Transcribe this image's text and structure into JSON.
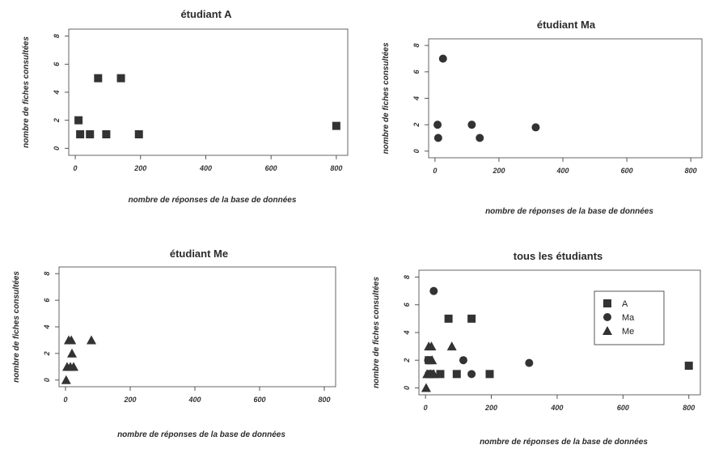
{
  "chart_data": [
    {
      "type": "scatter",
      "title": "étudiant A",
      "xlabel": "nombre de réponses de la base de données",
      "ylabel": "nombre de fiches consultées",
      "xticks": [
        "0",
        "200",
        "400",
        "600",
        "800"
      ],
      "yticks": [
        "0",
        "2",
        "4",
        "6",
        "8"
      ],
      "xlim": [
        -20,
        835
      ],
      "ylim": [
        -0.5,
        8.5
      ],
      "series": [
        {
          "marker": "square",
          "points": [
            [
              10,
              2
            ],
            [
              15,
              1
            ],
            [
              45,
              1
            ],
            [
              70,
              5
            ],
            [
              95,
              1
            ],
            [
              140,
              5
            ],
            [
              195,
              1
            ],
            [
              800,
              1.6
            ]
          ]
        }
      ]
    },
    {
      "type": "scatter",
      "title": "étudiant Ma",
      "xlabel": "nombre de réponses de la base de données",
      "ylabel": "nombre de fiches consultées",
      "xticks": [
        "0",
        "200",
        "400",
        "600",
        "800"
      ],
      "yticks": [
        "0",
        "2",
        "4",
        "6",
        "8"
      ],
      "xlim": [
        -20,
        835
      ],
      "ylim": [
        -0.5,
        8.5
      ],
      "series": [
        {
          "marker": "circle",
          "points": [
            [
              8,
              2
            ],
            [
              10,
              1
            ],
            [
              25,
              7
            ],
            [
              115,
              2
            ],
            [
              140,
              1
            ],
            [
              315,
              1.8
            ]
          ]
        }
      ]
    },
    {
      "type": "scatter",
      "title": "étudiant Me",
      "xlabel": "nombre de réponses de la base de données",
      "ylabel": "nombre de fiches consultées",
      "xticks": [
        "0",
        "200",
        "400",
        "600",
        "800"
      ],
      "yticks": [
        "0",
        "2",
        "4",
        "6",
        "8"
      ],
      "xlim": [
        -20,
        835
      ],
      "ylim": [
        -0.5,
        8.5
      ],
      "series": [
        {
          "marker": "triangle",
          "points": [
            [
              2,
              0
            ],
            [
              5,
              1
            ],
            [
              10,
              3
            ],
            [
              15,
              1
            ],
            [
              18,
              3
            ],
            [
              20,
              2
            ],
            [
              25,
              1
            ],
            [
              80,
              3
            ]
          ]
        }
      ]
    },
    {
      "type": "scatter",
      "title": "tous les étudiants",
      "xlabel": "nombre de réponses de la base de données",
      "ylabel": "nombre de fiches consultées",
      "xticks": [
        "0",
        "200",
        "400",
        "600",
        "800"
      ],
      "yticks": [
        "0",
        "2",
        "4",
        "6",
        "8"
      ],
      "xlim": [
        -20,
        835
      ],
      "ylim": [
        -0.5,
        8.5
      ],
      "legend_position": "top-right",
      "series": [
        {
          "name": "A",
          "marker": "square",
          "points": [
            [
              10,
              2
            ],
            [
              15,
              1
            ],
            [
              45,
              1
            ],
            [
              70,
              5
            ],
            [
              95,
              1
            ],
            [
              140,
              5
            ],
            [
              195,
              1
            ],
            [
              800,
              1.6
            ]
          ]
        },
        {
          "name": "Ma",
          "marker": "circle",
          "points": [
            [
              8,
              2
            ],
            [
              10,
              1
            ],
            [
              25,
              7
            ],
            [
              115,
              2
            ],
            [
              140,
              1
            ],
            [
              315,
              1.8
            ]
          ]
        },
        {
          "name": "Me",
          "marker": "triangle",
          "points": [
            [
              2,
              0
            ],
            [
              5,
              1
            ],
            [
              10,
              3
            ],
            [
              15,
              1
            ],
            [
              18,
              3
            ],
            [
              20,
              2
            ],
            [
              25,
              1
            ],
            [
              80,
              3
            ]
          ]
        }
      ]
    }
  ]
}
